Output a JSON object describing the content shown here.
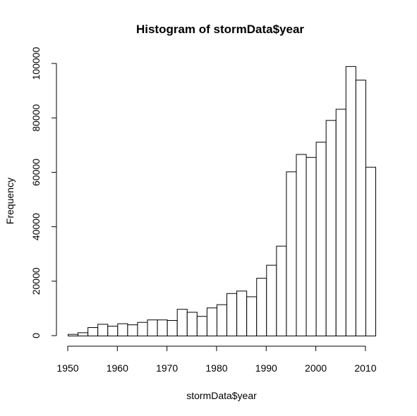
{
  "chart_data": {
    "type": "bar",
    "title": "Histogram of stormData$year",
    "xlabel": "stormData$year",
    "ylabel": "Frequency",
    "bin_width": 2,
    "bins": [
      {
        "start": 1950,
        "end": 1952,
        "count": 600
      },
      {
        "start": 1952,
        "end": 1954,
        "count": 1200
      },
      {
        "start": 1954,
        "end": 1956,
        "count": 3100
      },
      {
        "start": 1956,
        "end": 1958,
        "count": 4300
      },
      {
        "start": 1958,
        "end": 1960,
        "count": 3600
      },
      {
        "start": 1960,
        "end": 1962,
        "count": 4500
      },
      {
        "start": 1962,
        "end": 1964,
        "count": 4100
      },
      {
        "start": 1964,
        "end": 1966,
        "count": 5000
      },
      {
        "start": 1966,
        "end": 1968,
        "count": 5900
      },
      {
        "start": 1968,
        "end": 1970,
        "count": 5900
      },
      {
        "start": 1970,
        "end": 1972,
        "count": 5700
      },
      {
        "start": 1972,
        "end": 1974,
        "count": 9800
      },
      {
        "start": 1974,
        "end": 1976,
        "count": 8700
      },
      {
        "start": 1976,
        "end": 1978,
        "count": 7200
      },
      {
        "start": 1978,
        "end": 1980,
        "count": 10300
      },
      {
        "start": 1980,
        "end": 1982,
        "count": 11500
      },
      {
        "start": 1982,
        "end": 1984,
        "count": 15600
      },
      {
        "start": 1984,
        "end": 1986,
        "count": 16500
      },
      {
        "start": 1986,
        "end": 1988,
        "count": 14400
      },
      {
        "start": 1988,
        "end": 1990,
        "count": 21200
      },
      {
        "start": 1990,
        "end": 1992,
        "count": 26000
      },
      {
        "start": 1992,
        "end": 1994,
        "count": 33000
      },
      {
        "start": 1994,
        "end": 1996,
        "count": 60300
      },
      {
        "start": 1996,
        "end": 1998,
        "count": 66700
      },
      {
        "start": 1998,
        "end": 2000,
        "count": 65600
      },
      {
        "start": 2000,
        "end": 2002,
        "count": 71200
      },
      {
        "start": 2002,
        "end": 2004,
        "count": 79200
      },
      {
        "start": 2004,
        "end": 2006,
        "count": 83300
      },
      {
        "start": 2006,
        "end": 2008,
        "count": 99000
      },
      {
        "start": 2008,
        "end": 2010,
        "count": 94000
      },
      {
        "start": 2010,
        "end": 2012,
        "count": 62000
      }
    ],
    "xlim": [
      1950,
      2012
    ],
    "ylim": [
      0,
      100000
    ],
    "x_ticks": [
      1950,
      1960,
      1970,
      1980,
      1990,
      2000,
      2010
    ],
    "x_tick_labels": [
      "1950",
      "1960",
      "1970",
      "1980",
      "1990",
      "2000",
      "2010"
    ],
    "y_ticks": [
      0,
      20000,
      40000,
      60000,
      80000,
      100000
    ],
    "y_tick_labels": [
      "0",
      "20000",
      "40000",
      "60000",
      "80000",
      "100000"
    ],
    "grid": false,
    "legend": "none",
    "colors": {
      "bar_fill": "#ffffff",
      "bar_stroke": "#000000"
    }
  }
}
